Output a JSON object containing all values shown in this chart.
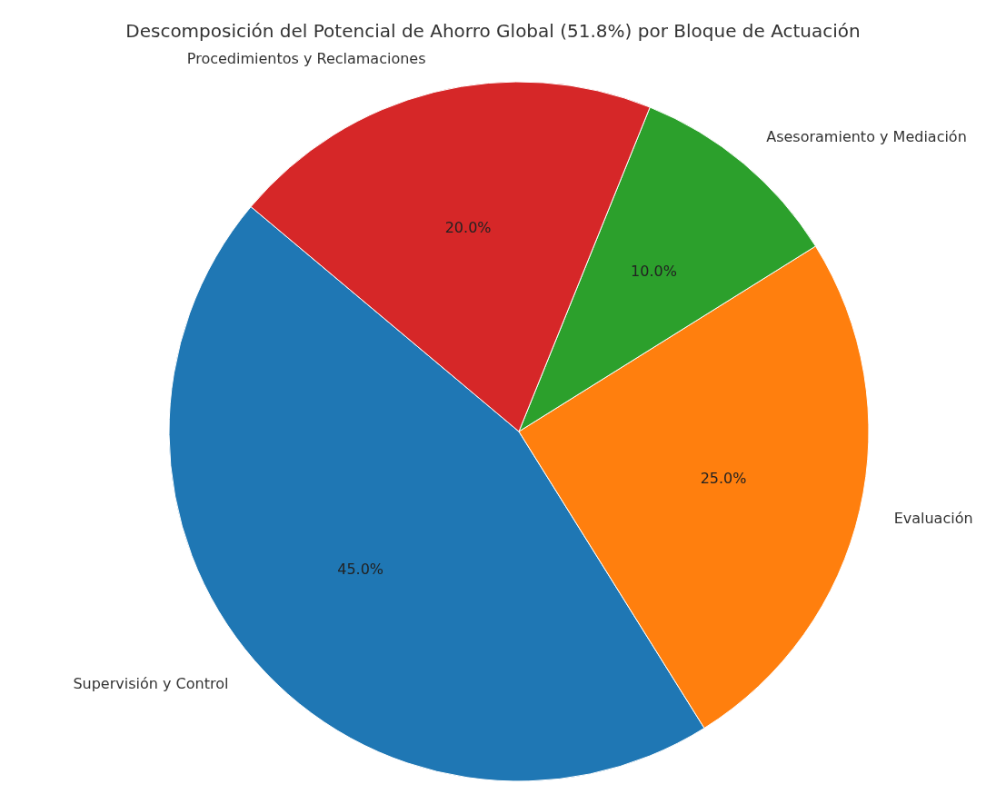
{
  "chart_data": {
    "type": "pie",
    "title": "Descomposición del Potencial de Ahorro Global (51.8%) por Bloque de Actuación",
    "categories": [
      "Supervisión y Control",
      "Evaluación",
      "Asesoramiento y Mediación",
      "Procedimientos y Reclamaciones"
    ],
    "values": [
      45,
      25,
      10,
      20
    ],
    "value_labels": [
      "45.0%",
      "25.0%",
      "10.0%",
      "20.0%"
    ],
    "colors": [
      "#1f77b4",
      "#ff7f0e",
      "#2ca02c",
      "#d62728"
    ],
    "legend": false
  }
}
